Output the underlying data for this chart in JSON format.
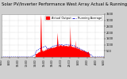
{
  "title": "Solar PV/Inverter Performance West Array Actual & Running Average Power Output",
  "bg_color": "#d0d0d0",
  "plot_bg_color": "#ffffff",
  "bar_color": "#ff0000",
  "avg_color": "#0000cd",
  "ylim": [
    0,
    3500
  ],
  "yticks": [
    500,
    1000,
    1500,
    2000,
    2500,
    3000,
    3500
  ],
  "num_points": 288,
  "legend_actual": "Actual Output",
  "legend_avg": "Running Average",
  "title_fontsize": 3.8,
  "tick_fontsize": 2.5,
  "legend_fontsize": 2.5
}
